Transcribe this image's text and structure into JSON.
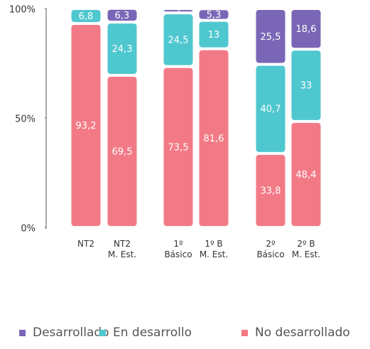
{
  "chart_data": {
    "type": "stacked_bar",
    "categories": [
      "NT2",
      "NT2\nM. Est.",
      "1º\nBásico",
      "1º B\nM. Est.",
      "2º\nBásico",
      "2º B\nM. Est."
    ],
    "series": [
      {
        "name": "No desarrollado",
        "color": "#f27a86",
        "values": [
          93.2,
          69.5,
          73.5,
          81.6,
          33.8,
          48.4
        ],
        "value_labels": [
          "93,2",
          "69,5",
          "73,5",
          "81,6",
          "33,8",
          "48,4"
        ]
      },
      {
        "name": "En desarrollo",
        "color": "#4fc7cf",
        "values": [
          6.8,
          24.3,
          24.5,
          13,
          40.7,
          33
        ],
        "value_labels": [
          "6,8",
          "24,3",
          "24,5",
          "13",
          "40,7",
          "33"
        ]
      },
      {
        "name": "Desarrollado",
        "color": "#7a66b6",
        "values": [
          null,
          6.3,
          2,
          5.3,
          25.5,
          18.6
        ],
        "value_labels": [
          null,
          "6,3",
          "2",
          "5,3",
          "25,5",
          "18,6"
        ]
      }
    ],
    "ylim": [
      0,
      100
    ],
    "yticks": [
      {
        "value": 0,
        "label": "0%"
      },
      {
        "value": 50,
        "label": "50%"
      },
      {
        "value": 100,
        "label": "100%"
      }
    ]
  }
}
